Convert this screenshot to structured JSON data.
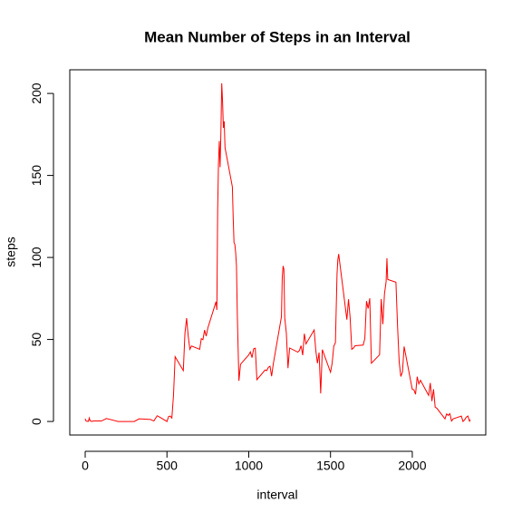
{
  "chart_data": {
    "type": "line",
    "title": "Mean Number of Steps in an Interval",
    "xlabel": "interval",
    "ylabel": "steps",
    "x": [
      0,
      5,
      10,
      15,
      20,
      25,
      30,
      40,
      50,
      100,
      130,
      200,
      230,
      300,
      330,
      400,
      420,
      440,
      450,
      500,
      510,
      520,
      530,
      540,
      550,
      600,
      610,
      620,
      630,
      640,
      650,
      700,
      710,
      720,
      730,
      740,
      750,
      800,
      805,
      810,
      815,
      820,
      825,
      830,
      835,
      840,
      845,
      850,
      855,
      900,
      905,
      910,
      915,
      920,
      925,
      930,
      935,
      940,
      950,
      1000,
      1010,
      1020,
      1030,
      1040,
      1050,
      1100,
      1110,
      1120,
      1130,
      1140,
      1150,
      1200,
      1205,
      1210,
      1215,
      1220,
      1230,
      1240,
      1250,
      1300,
      1310,
      1320,
      1330,
      1340,
      1350,
      1400,
      1410,
      1420,
      1430,
      1440,
      1450,
      1500,
      1510,
      1520,
      1530,
      1540,
      1545,
      1550,
      1600,
      1610,
      1620,
      1630,
      1640,
      1650,
      1700,
      1710,
      1720,
      1730,
      1740,
      1750,
      1800,
      1810,
      1820,
      1830,
      1840,
      1845,
      1850,
      1900,
      1910,
      1920,
      1930,
      1940,
      1950,
      2000,
      2010,
      2020,
      2030,
      2040,
      2050,
      2100,
      2110,
      2120,
      2130,
      2140,
      2150,
      2200,
      2210,
      2220,
      2230,
      2240,
      2250,
      2300,
      2310,
      2320,
      2330,
      2340,
      2350,
      2355
    ],
    "series": [
      {
        "name": "steps",
        "color": "#ff0000",
        "values": [
          1.7,
          0.3,
          0.1,
          0.2,
          0.1,
          2.1,
          0.5,
          0,
          0.3,
          0.3,
          1.8,
          0,
          0,
          0,
          1.6,
          1.2,
          0.3,
          3.5,
          3,
          0,
          3,
          3.3,
          2.1,
          16,
          39.5,
          31,
          53.8,
          63,
          52,
          44,
          46,
          44,
          50.5,
          49.9,
          55.7,
          52,
          57,
          73,
          68,
          129,
          157,
          171,
          155,
          177,
          206.2,
          195,
          179,
          183,
          167,
          143,
          124,
          109,
          108,
          103,
          95,
          66,
          45,
          24.8,
          34.9,
          40.6,
          42.4,
          38.9,
          44.3,
          44.7,
          25.5,
          31.4,
          31,
          33,
          33.7,
          27.6,
          35,
          63.9,
          87.7,
          94.8,
          92.8,
          63.4,
          53.9,
          32.5,
          44.8,
          42.3,
          43.3,
          46.2,
          40.4,
          53.5,
          47.3,
          55.8,
          43.3,
          35.5,
          42,
          17.1,
          43.8,
          30,
          35.5,
          45.9,
          48,
          90.3,
          98.7,
          102.1,
          62.1,
          74.5,
          63.2,
          44,
          44.7,
          46.2,
          46.6,
          50.7,
          73.4,
          68.9,
          75.1,
          35.5,
          40.7,
          74.7,
          59.3,
          77.8,
          85.3,
          99.5,
          86.6,
          84.9,
          58,
          36.1,
          27.4,
          30.2,
          45.7,
          19.6,
          19.3,
          16.6,
          27.3,
          22.9,
          25.1,
          15.9,
          23.5,
          12.4,
          19.6,
          8.7,
          8.1,
          1.6,
          4.6,
          3.7,
          4.8,
          0.3,
          1.6,
          3.3,
          0,
          1,
          2.6,
          3.3,
          0.2,
          1.1
        ]
      }
    ],
    "xlim": [
      -94.2,
      2449.2
    ],
    "xticks": [
      0,
      500,
      1000,
      1500,
      2000
    ],
    "ylim": [
      -8.25,
      214.42
    ],
    "yticks": [
      0,
      50,
      100,
      150,
      200
    ]
  }
}
